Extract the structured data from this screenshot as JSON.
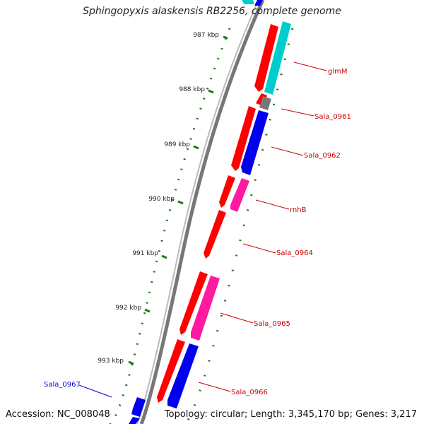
{
  "title": "Sphingopyxis alaskensis RB2256, complete genome",
  "accession": "Accession: NC_008048",
  "topology": "Topology: circular; Length: 3,345,170 bp; Genes: 3,217",
  "ticks": [
    "987 kbp",
    "988 kbp",
    "989 kbp",
    "990 kbp",
    "991 kbp",
    "992 kbp",
    "993 kbp"
  ],
  "gene_labels": [
    {
      "name": "glmM",
      "color": "#cc0000"
    },
    {
      "name": "Sala_0961",
      "color": "#cc0000"
    },
    {
      "name": "Sala_0962",
      "color": "#cc0000"
    },
    {
      "name": "rnhB",
      "color": "#cc0000"
    },
    {
      "name": "Sala_0964",
      "color": "#cc0000"
    },
    {
      "name": "Sala_0965",
      "color": "#cc0000"
    },
    {
      "name": "Sala_0966",
      "color": "#cc0000"
    },
    {
      "name": "Sala_0967",
      "color": "#0000cc"
    }
  ],
  "colors": {
    "cds_red": "#ff0000",
    "trna_cyan": "#00cccc",
    "blue": "#0000ee",
    "magenta": "#ff1aa0",
    "gray": "#777777",
    "tick_green": "#1a7a1a",
    "backbone": "#888888"
  }
}
